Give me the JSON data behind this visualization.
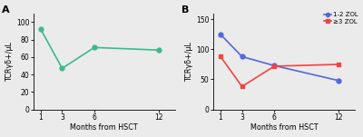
{
  "panel_A": {
    "label": "A",
    "x": [
      1,
      3,
      6,
      12
    ],
    "y": [
      92,
      47,
      71,
      68
    ],
    "color": "#3cba8a",
    "marker": "o",
    "markersize": 3.5,
    "linewidth": 1.2,
    "ylim": [
      0,
      110
    ],
    "yticks": [
      0,
      20,
      40,
      60,
      80,
      100
    ],
    "xlabel": "Months from HSCT",
    "ylabel": "TCRγδ+/μL",
    "xticks": [
      1,
      3,
      6,
      12
    ],
    "xlim": [
      0.3,
      13.5
    ]
  },
  "panel_B": {
    "label": "B",
    "series": [
      {
        "name": "1-2 ZOL",
        "x": [
          1,
          3,
          6,
          12
        ],
        "y": [
          125,
          88,
          73,
          48
        ],
        "color": "#5566dd",
        "marker": "o",
        "markersize": 3.5,
        "linewidth": 1.2
      },
      {
        "name": "≥3 ZOL",
        "x": [
          1,
          3,
          6,
          12
        ],
        "y": [
          88,
          38,
          72,
          75
        ],
        "color": "#ee4444",
        "marker": "s",
        "markersize": 3.5,
        "linewidth": 1.2
      }
    ],
    "ylim": [
      0,
      160
    ],
    "yticks": [
      0,
      50,
      100,
      150
    ],
    "xlabel": "Months from HSCT",
    "ylabel": "TCRγδ+/μL",
    "xticks": [
      1,
      3,
      6,
      12
    ],
    "xlim": [
      0.3,
      13.5
    ]
  },
  "background_color": "#ebebeb",
  "panel_bg": "#ebebeb",
  "tick_fontsize": 5.5,
  "label_fontsize": 5.8,
  "panel_label_fontsize": 8
}
